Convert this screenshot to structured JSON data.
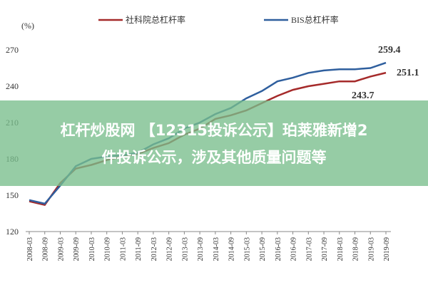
{
  "chart_data": {
    "type": "line",
    "y_label": "(%)",
    "categories": [
      "2008-03",
      "2008-09",
      "2009-03",
      "2009-09",
      "2010-03",
      "2010-09",
      "2011-03",
      "2011-09",
      "2012-03",
      "2012-09",
      "2013-03",
      "2013-09",
      "2014-03",
      "2014-09",
      "2015-03",
      "2015-09",
      "2016-03",
      "2016-09",
      "2017-03",
      "2017-09",
      "2018-03",
      "2018-09",
      "2019-03",
      "2019-09"
    ],
    "series": [
      {
        "name": "社科院总杠杆率",
        "color": "#a52a2a",
        "values": [
          145,
          142,
          160,
          172,
          175,
          179,
          182,
          184,
          189,
          193,
          200,
          205,
          213,
          216,
          220,
          226,
          232,
          237,
          240,
          242,
          244,
          244,
          248,
          251.1
        ]
      },
      {
        "name": "BIS总杠杆率",
        "color": "#2f5f9e",
        "values": [
          146,
          143,
          158,
          174,
          180,
          182,
          183,
          185,
          192,
          197,
          205,
          210,
          217,
          222,
          230,
          236,
          244,
          247,
          251,
          253,
          254,
          254,
          255,
          259.4
        ]
      }
    ],
    "annotations": [
      "259.4",
      "251.1",
      "243.7"
    ],
    "ylim": [
      120,
      270
    ],
    "yticks": [
      120,
      150,
      180,
      210,
      240,
      270
    ],
    "grid": false
  },
  "banner": {
    "lines": [
      "杠杆炒股网 【12315投诉公示】珀莱雅新增2",
      "件投诉公示，涉及其他质量问题等"
    ]
  }
}
